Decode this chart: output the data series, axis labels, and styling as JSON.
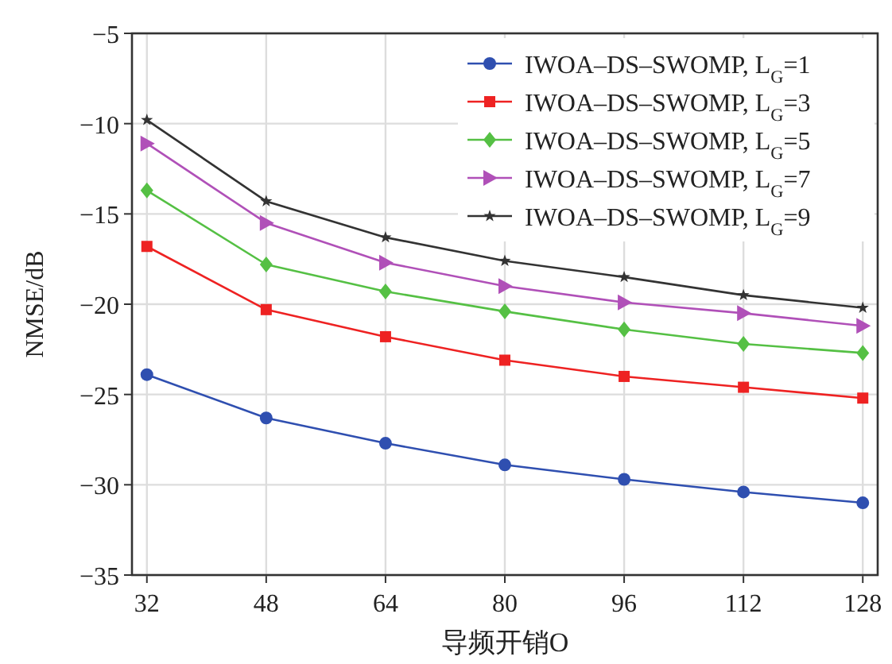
{
  "chart_data": {
    "type": "line",
    "xlabel": "导频开销O",
    "ylabel": "NMSE/dB",
    "x": [
      32,
      48,
      64,
      80,
      96,
      112,
      128
    ],
    "xlim": [
      30,
      130
    ],
    "xticks": [
      32,
      48,
      64,
      80,
      96,
      112,
      128
    ],
    "ylim": [
      -35,
      -5
    ],
    "yticks": [
      -35,
      -30,
      -25,
      -20,
      -15,
      -10,
      -5
    ],
    "grid": true,
    "legend": "top right",
    "line_style": "solid",
    "series": [
      {
        "name": "IWOA–DS–SWOMP, L$_{G}$=1",
        "color": "#2f4fb0",
        "marker": "circle",
        "values": [
          -23.9,
          -26.3,
          -27.7,
          -28.9,
          -29.7,
          -30.4,
          -31.0
        ]
      },
      {
        "name": "IWOA–DS–SWOMP, L$_{G}$=3",
        "color": "#ee2222",
        "marker": "square",
        "values": [
          -16.8,
          -20.3,
          -21.8,
          -23.1,
          -24.0,
          -24.6,
          -25.2
        ]
      },
      {
        "name": "IWOA–DS–SWOMP, L$_{G}$=5",
        "color": "#55c044",
        "marker": "diamond",
        "values": [
          -13.7,
          -17.8,
          -19.3,
          -20.4,
          -21.4,
          -22.2,
          -22.7
        ]
      },
      {
        "name": "IWOA–DS–SWOMP, L$_{G}$=7",
        "color": "#b050b8",
        "marker": "triangle",
        "values": [
          -11.1,
          -15.5,
          -17.7,
          -19.0,
          -19.9,
          -20.5,
          -21.2
        ]
      },
      {
        "name": "IWOA–DS–SWOMP, L$_{G}$=9",
        "color": "#333333",
        "marker": "star",
        "values": [
          -9.8,
          -14.3,
          -16.3,
          -17.6,
          -18.5,
          -19.5,
          -20.2
        ]
      }
    ]
  }
}
